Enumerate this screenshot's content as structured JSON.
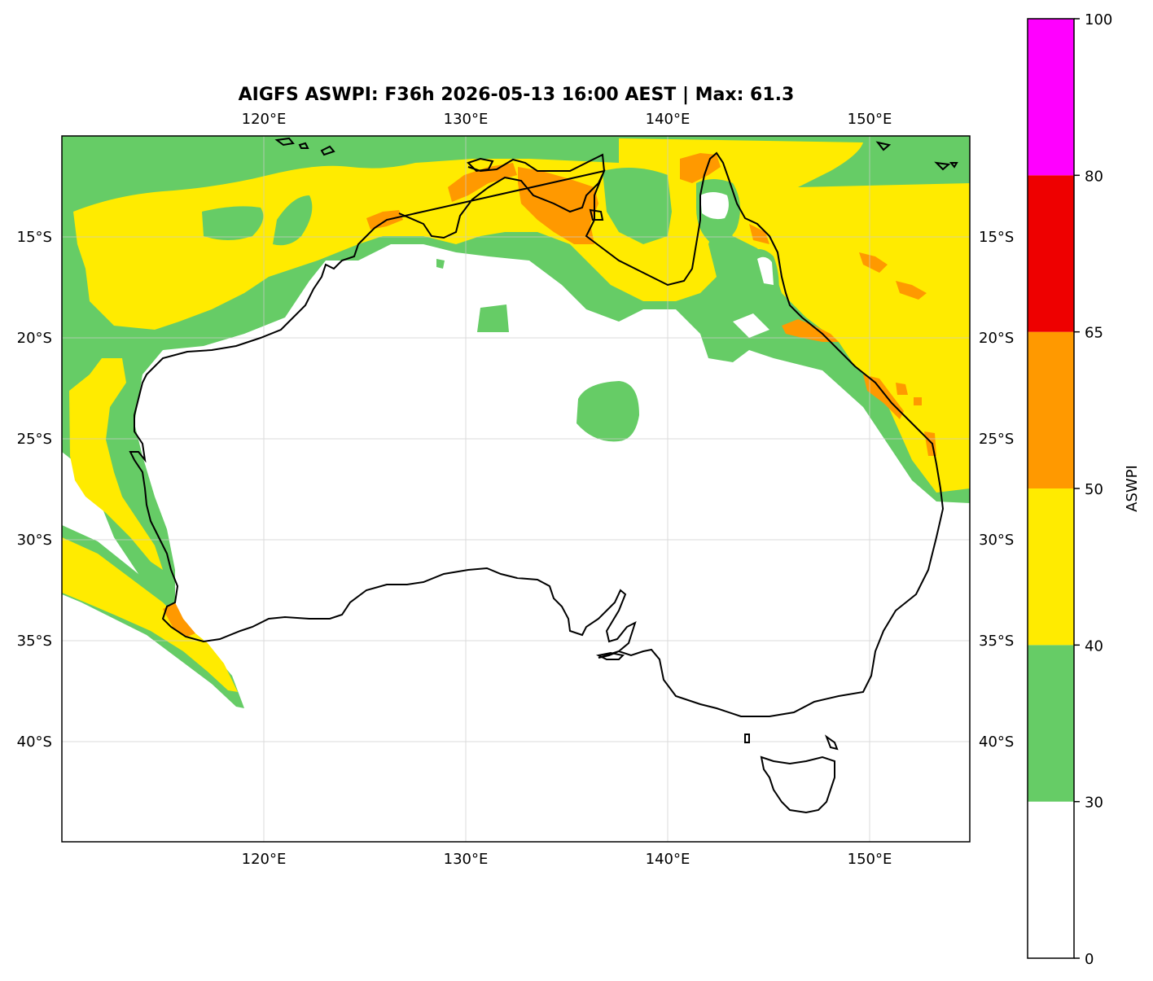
{
  "title": "AIGFS ASWPI: F36h 2026-05-13 16:00 AEST | Max: 61.3",
  "map": {
    "lon_range": [
      110,
      155
    ],
    "lat_range": [
      -45,
      -10
    ],
    "lon_ticks": [
      {
        "value": 120,
        "label": "120°E"
      },
      {
        "value": 130,
        "label": "130°E"
      },
      {
        "value": 140,
        "label": "140°E"
      },
      {
        "value": 150,
        "label": "150°E"
      }
    ],
    "lat_ticks": [
      {
        "value": -15,
        "label": "15°S"
      },
      {
        "value": -20,
        "label": "20°S"
      },
      {
        "value": -25,
        "label": "25°S"
      },
      {
        "value": -30,
        "label": "30°S"
      },
      {
        "value": -35,
        "label": "35°S"
      },
      {
        "value": -40,
        "label": "40°S"
      }
    ],
    "gridlines": true,
    "coastline_color": "#000000"
  },
  "colorbar": {
    "label": "ASWPI",
    "levels": [
      {
        "from": 0,
        "to": 30,
        "color": "#ffffff"
      },
      {
        "from": 30,
        "to": 40,
        "color": "#66cc66"
      },
      {
        "from": 40,
        "to": 50,
        "color": "#ffeb00"
      },
      {
        "from": 50,
        "to": 65,
        "color": "#ff9900"
      },
      {
        "from": 65,
        "to": 80,
        "color": "#ee0000"
      },
      {
        "from": 80,
        "to": 100,
        "color": "#ff00ff"
      }
    ],
    "ticks": [
      "0",
      "30",
      "40",
      "50",
      "65",
      "80",
      "100"
    ]
  }
}
